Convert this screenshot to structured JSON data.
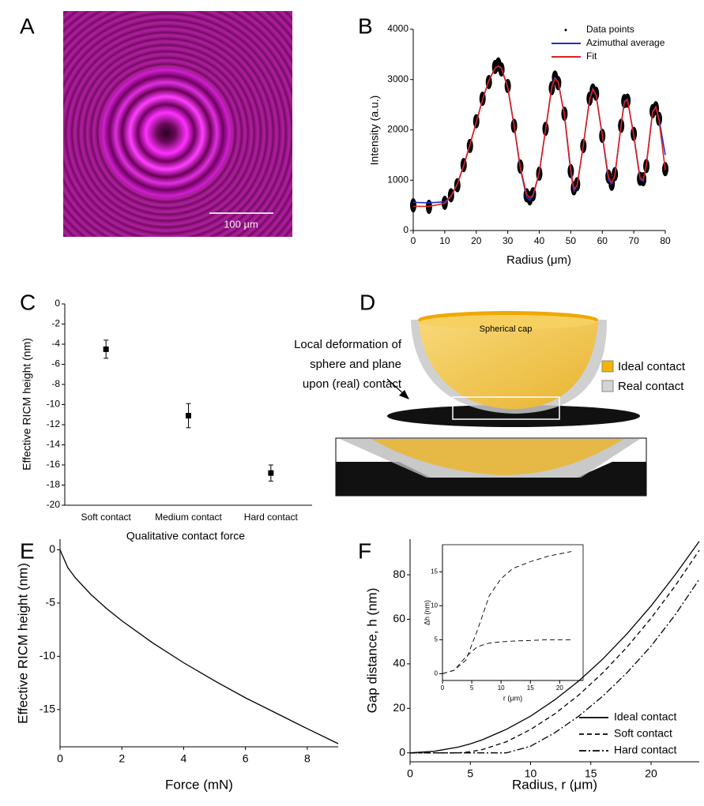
{
  "chart_data": [
    {
      "type": "image",
      "label": "A",
      "scale_bar": "100 µm"
    },
    {
      "type": "line",
      "label": "B",
      "xlabel": "Radius (μm)",
      "ylabel": "Intensity (a.u.)",
      "x": [
        0,
        5,
        10,
        12,
        14,
        16,
        18,
        20,
        22,
        24,
        26,
        27,
        28,
        30,
        32,
        34,
        36,
        37,
        38,
        40,
        42,
        44,
        45,
        46,
        48,
        50,
        51,
        52,
        54,
        56,
        57,
        58,
        60,
        62,
        63,
        64,
        66,
        67,
        68,
        70,
        72,
        73,
        74,
        76,
        77,
        78,
        80
      ],
      "series": [
        {
          "name": "Data points",
          "color": "#000000",
          "marker": "dot",
          "values": [
            500,
            470,
            550,
            700,
            900,
            1300,
            1680,
            2170,
            2620,
            2950,
            3250,
            3300,
            3200,
            2870,
            2080,
            1270,
            700,
            640,
            720,
            1130,
            2020,
            2830,
            3040,
            2930,
            2320,
            1180,
            840,
            920,
            1680,
            2620,
            2780,
            2720,
            1880,
            1070,
            930,
            1120,
            2080,
            2570,
            2580,
            1920,
            1030,
            1020,
            1280,
            2370,
            2430,
            2220,
            1220
          ]
        },
        {
          "name": "Azimuthal average",
          "color": "#1f2fd0",
          "values": [
            560,
            550,
            570,
            690,
            930,
            1290,
            1710,
            2150,
            2600,
            2980,
            3230,
            3260,
            3220,
            2840,
            2080,
            1220,
            660,
            600,
            680,
            1150,
            2010,
            2870,
            3040,
            2960,
            2280,
            1150,
            780,
            880,
            1700,
            2620,
            2820,
            2700,
            1880,
            1000,
            920,
            1100,
            2110,
            2570,
            2610,
            1880,
            1010,
            980,
            1320,
            2370,
            2460,
            2230,
            1500
          ]
        },
        {
          "name": "Fit",
          "color": "#e0201c",
          "values": [
            480,
            480,
            540,
            680,
            920,
            1280,
            1700,
            2150,
            2600,
            2980,
            3230,
            3270,
            3230,
            2850,
            2100,
            1250,
            720,
            650,
            700,
            1150,
            2000,
            2850,
            3020,
            2950,
            2300,
            1200,
            820,
            900,
            1700,
            2600,
            2800,
            2700,
            1900,
            1050,
            950,
            1100,
            2100,
            2550,
            2600,
            1900,
            1050,
            1000,
            1300,
            2350,
            2450,
            2200,
            1200
          ]
        }
      ],
      "xlim": [
        0,
        80
      ],
      "xticks": [
        0,
        10,
        20,
        30,
        40,
        50,
        60,
        70,
        80
      ],
      "ylim": [
        0,
        4000
      ],
      "yticks": [
        0,
        1000,
        2000,
        3000,
        4000
      ],
      "legend": "top-right"
    },
    {
      "type": "errorbar",
      "label": "C",
      "xlabel": "Qualitative contact force",
      "ylabel": "Effective RICM height (nm)",
      "categories": [
        "Soft contact",
        "Medium contact",
        "Hard contact"
      ],
      "values": [
        -4.5,
        -11.1,
        -16.8
      ],
      "errors": [
        0.9,
        1.2,
        0.8
      ],
      "color": "#000000",
      "ylim": [
        -20,
        0
      ],
      "yticks": [
        0,
        -2,
        -4,
        -6,
        -8,
        -10,
        -12,
        -14,
        -16,
        -18,
        -20
      ]
    },
    {
      "type": "diagram",
      "label": "D",
      "cap_label": "Spherical cap",
      "annotation": [
        "Local deformation of",
        "sphere and plane",
        "upon (real) contact"
      ],
      "legend": [
        {
          "name": "Ideal contact",
          "color": "#f5b400"
        },
        {
          "name": "Real contact",
          "color": "#d4d4d4"
        }
      ]
    },
    {
      "type": "line",
      "label": "E",
      "xlabel": "Force (mN)",
      "ylabel": "Effective RICM height (nm)",
      "x": [
        0,
        0.25,
        0.5,
        1,
        1.5,
        2,
        3,
        4,
        5,
        6,
        7,
        8,
        9
      ],
      "series": [
        {
          "color": "#000000",
          "values": [
            0,
            -1.67,
            -2.65,
            -4.2,
            -5.5,
            -6.67,
            -8.74,
            -10.6,
            -12.3,
            -13.9,
            -15.35,
            -16.8,
            -18.2
          ]
        }
      ],
      "xlim": [
        0,
        9
      ],
      "xticks": [
        0,
        2,
        4,
        6,
        8
      ],
      "ylim": [
        -18.5,
        1
      ],
      "yticks": [
        0,
        -5,
        -10,
        -15
      ]
    },
    {
      "type": "line",
      "label": "F",
      "xlabel": "Radius, r (μm)",
      "ylabel": "Gap distance, h (nm)",
      "x": [
        0,
        2,
        4,
        5,
        6,
        8,
        10,
        12,
        14,
        16,
        18,
        20,
        22,
        24
      ],
      "series": [
        {
          "name": "Ideal contact",
          "color": "#000000",
          "dash": "solid",
          "values": [
            0,
            0.7,
            2.6,
            4.1,
            5.9,
            10.6,
            16.5,
            23.8,
            32.3,
            42.2,
            53.5,
            66,
            80,
            95
          ]
        },
        {
          "name": "Soft contact",
          "color": "#000000",
          "dash": "dashed",
          "values": [
            0,
            0,
            0,
            0.5,
            1.5,
            5,
            10.5,
            17.5,
            26,
            36,
            47.5,
            60.5,
            75,
            91
          ]
        },
        {
          "name": "Hard contact",
          "color": "#000000",
          "dash": "dashdot",
          "values": [
            0,
            0,
            0,
            0,
            0,
            0,
            3,
            9,
            16.5,
            25.5,
            36,
            48,
            62,
            78
          ]
        }
      ],
      "xlim": [
        0,
        24
      ],
      "xticks": [
        0,
        5,
        10,
        15,
        20
      ],
      "ylim": [
        -4,
        96
      ],
      "yticks": [
        0,
        20,
        40,
        60,
        80
      ],
      "legend": "bottom-right",
      "inset": {
        "xlabel": "r (μm)",
        "ylabel": "Δh (nm)",
        "x": [
          0,
          2,
          4,
          6,
          8,
          10,
          12,
          15,
          18,
          22
        ],
        "series": [
          {
            "color": "#000000",
            "dash": "dashed",
            "values": [
              0,
              0.5,
              2,
              6.5,
              11.5,
              14,
              15.5,
              16.5,
              17.3,
              18
            ]
          },
          {
            "color": "#000000",
            "dash": "dashed",
            "values": [
              0,
              0.5,
              2.5,
              4,
              4.5,
              4.7,
              4.8,
              4.9,
              5,
              5
            ]
          }
        ],
        "xlim": [
          0,
          24
        ],
        "xticks": [
          0,
          5,
          10,
          15,
          20
        ],
        "ylim": [
          -1,
          19
        ],
        "yticks": [
          0,
          5,
          10,
          15
        ]
      }
    }
  ]
}
